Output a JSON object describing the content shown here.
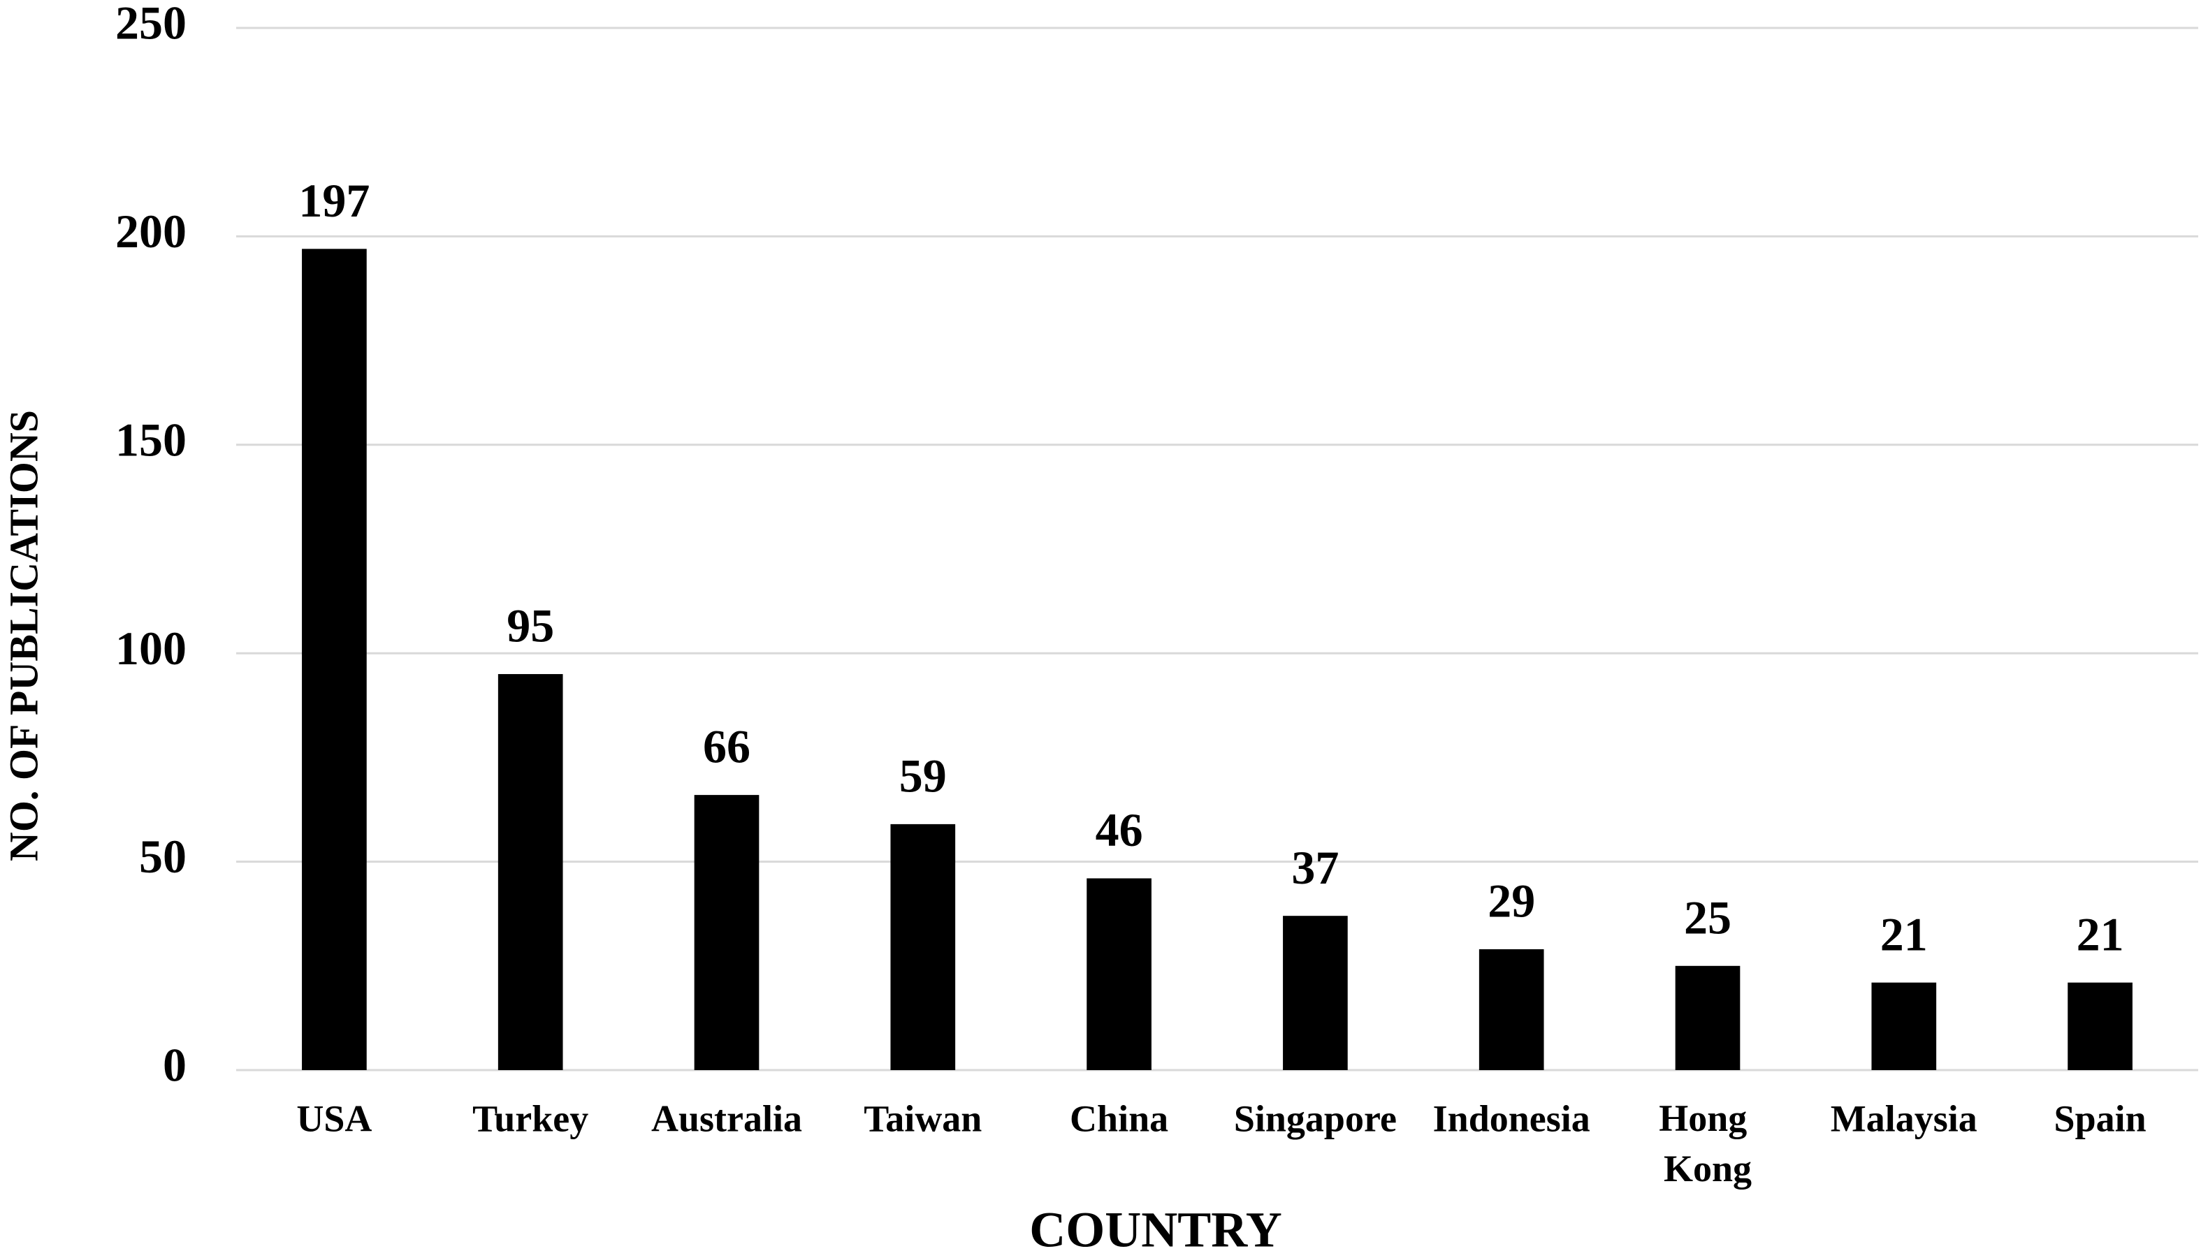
{
  "chart_data": {
    "type": "bar",
    "x_label": "COUNTRY",
    "y_label": "NO. OF PUBLICATIONS",
    "categories": [
      "USA",
      "Turkey",
      "Australia",
      "Taiwan",
      "China",
      "Singapore",
      "Indonesia",
      "Hong Kong",
      "Malaysia",
      "Spain"
    ],
    "values": [
      197,
      95,
      66,
      59,
      46,
      37,
      29,
      25,
      21,
      21
    ],
    "color": "#000000",
    "ylim": [
      0,
      250
    ],
    "yticks": [
      0,
      50,
      100,
      150,
      200,
      250
    ],
    "grid": true
  }
}
